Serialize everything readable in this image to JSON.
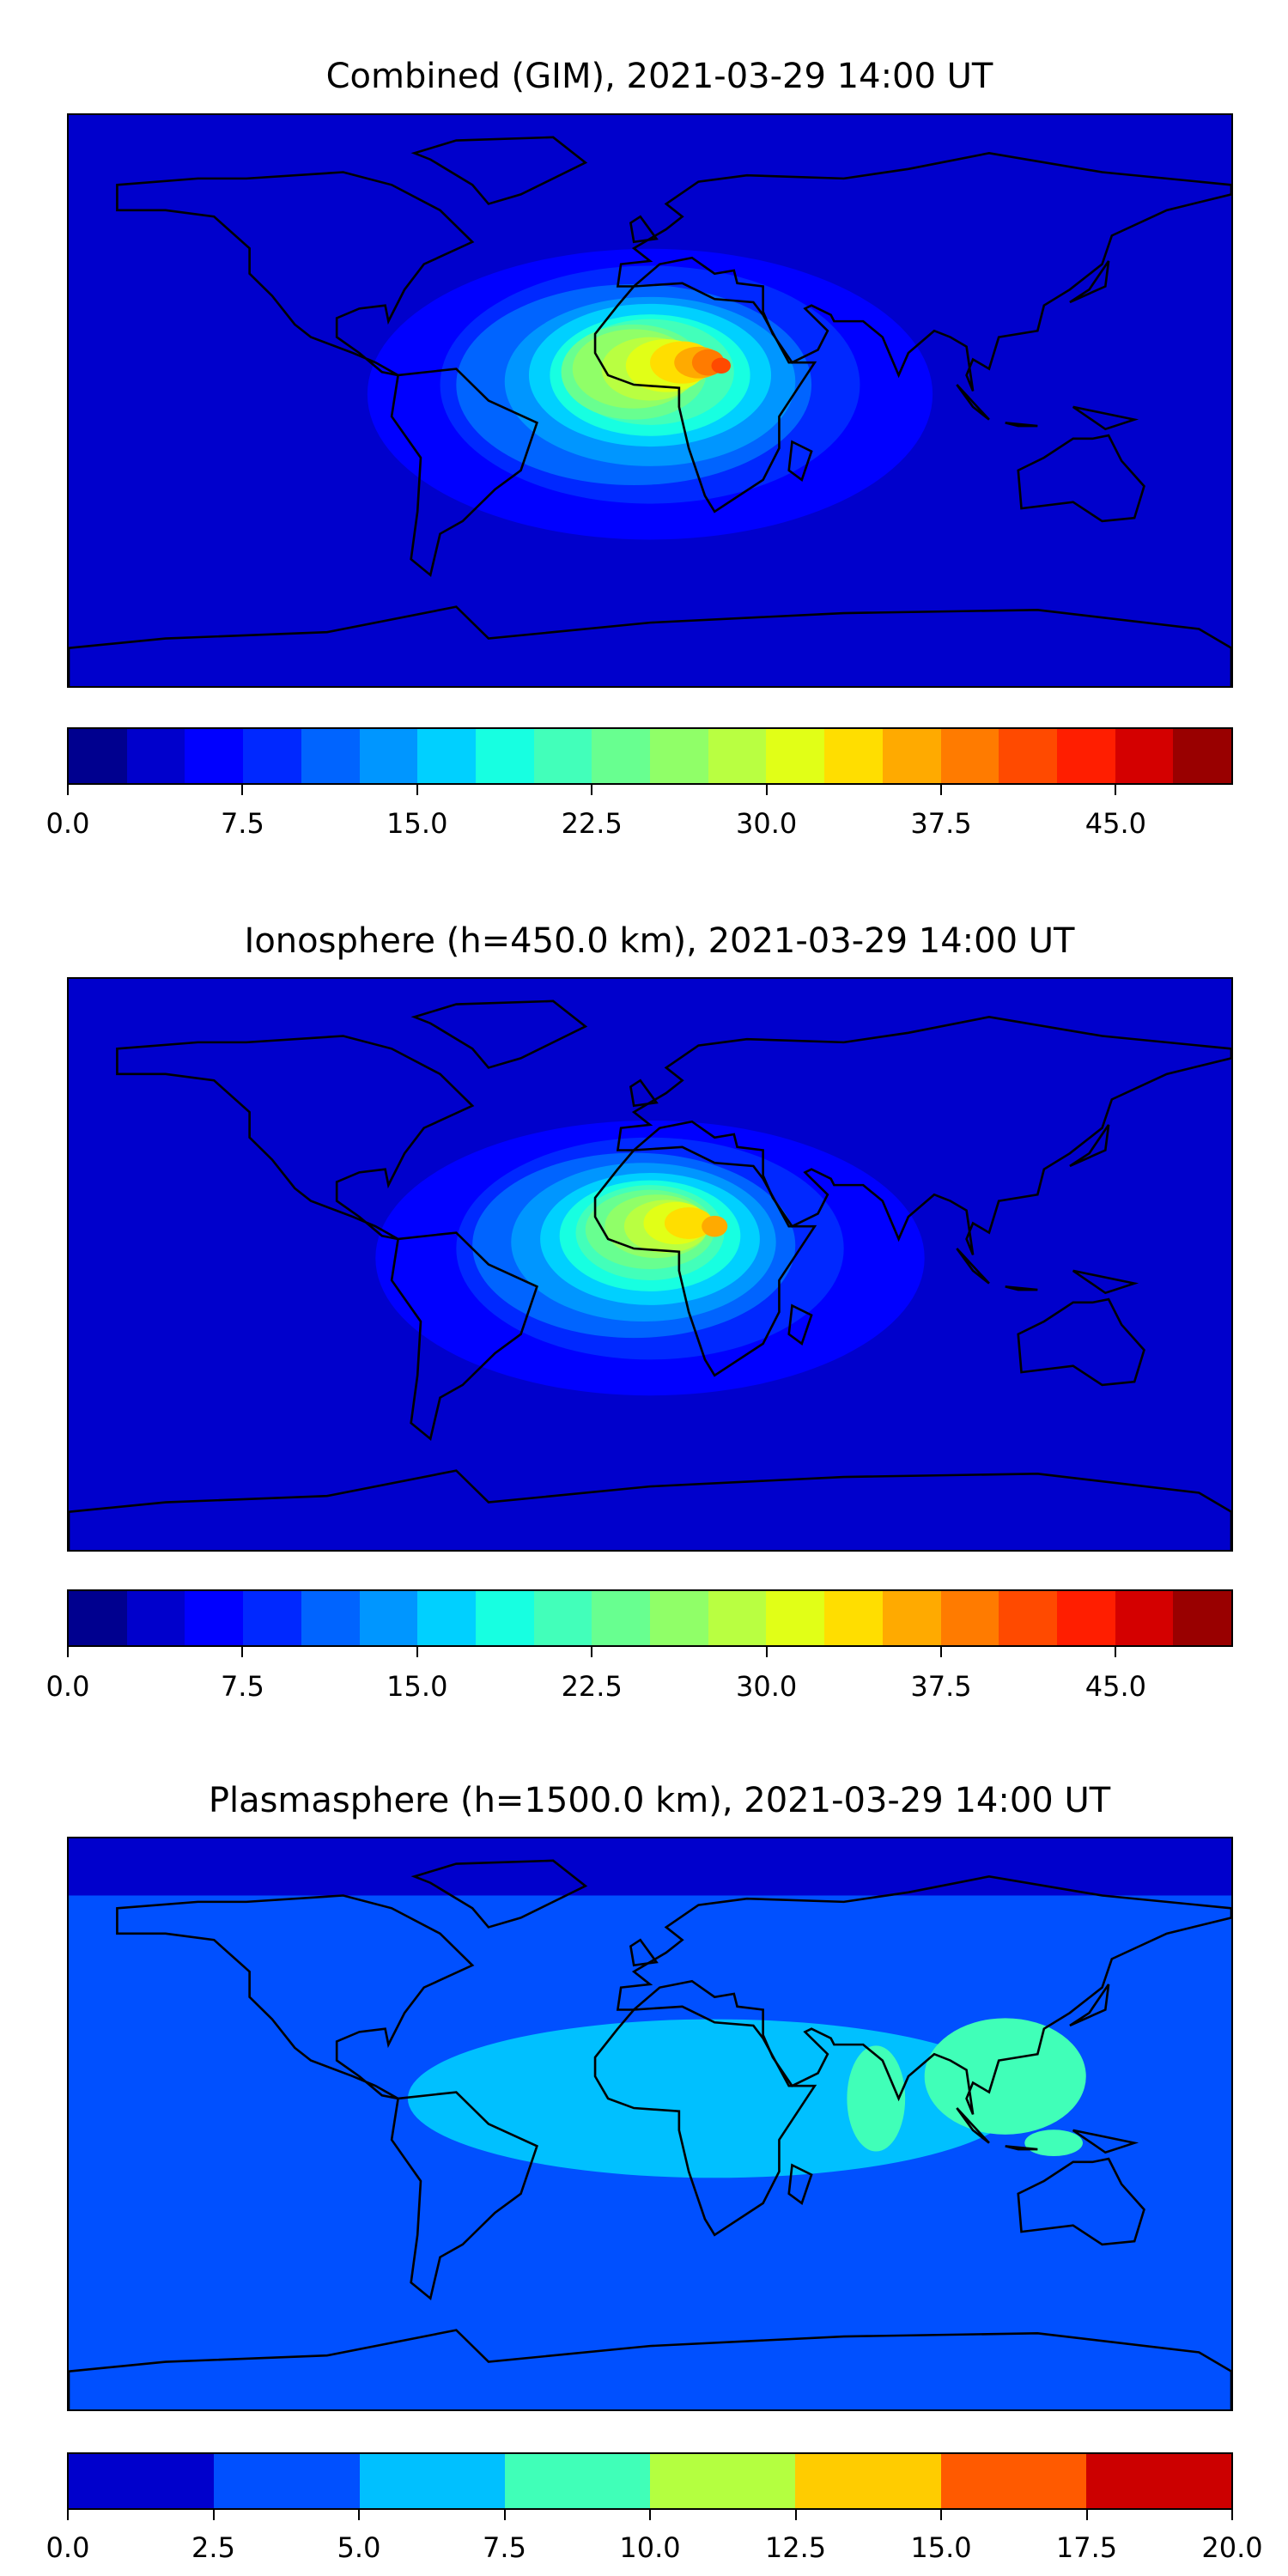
{
  "panels": [
    {
      "title": "Combined (GIM), 2021-03-29 14:00 UT",
      "ticks": [
        "0.0",
        "7.5",
        "15.0",
        "22.5",
        "30.0",
        "37.5",
        "45.0"
      ],
      "tick_values": [
        0,
        7.5,
        15,
        22.5,
        30,
        37.5,
        45
      ],
      "range": [
        0,
        50
      ],
      "levels": 20
    },
    {
      "title": "Ionosphere  (h=450.0 km), 2021-03-29 14:00 UT",
      "ticks": [
        "0.0",
        "7.5",
        "15.0",
        "22.5",
        "30.0",
        "37.5",
        "45.0"
      ],
      "tick_values": [
        0,
        7.5,
        15,
        22.5,
        30,
        37.5,
        45
      ],
      "range": [
        0,
        50
      ],
      "levels": 20
    },
    {
      "title": "Plasmasphere (h=1500.0 km), 2021-03-29 14:00 UT",
      "ticks": [
        "0.0",
        "2.5",
        "5.0",
        "7.5",
        "10.0",
        "12.5",
        "15.0",
        "17.5",
        "20.0"
      ],
      "tick_values": [
        0,
        2.5,
        5,
        7.5,
        10,
        12.5,
        15,
        17.5,
        20
      ],
      "range": [
        0,
        20
      ],
      "levels": 8
    }
  ],
  "colors20": [
    "#00008f",
    "#0000cc",
    "#0000ff",
    "#0028ff",
    "#0064ff",
    "#0096ff",
    "#00d0ff",
    "#17ffe1",
    "#42ffba",
    "#68ff90",
    "#90ff68",
    "#b9ff41",
    "#e1ff17",
    "#ffde00",
    "#ffaa00",
    "#ff7b00",
    "#ff4a00",
    "#ff1e00",
    "#d40000",
    "#990000"
  ],
  "colors8": [
    "#0000cc",
    "#0050ff",
    "#00c0ff",
    "#40ffb8",
    "#b4ff40",
    "#ffcc00",
    "#ff5a00",
    "#cc0000"
  ],
  "chart_data": [
    {
      "type": "heatmap",
      "title": "Combined (GIM), 2021-03-29 14:00 UT",
      "colorbar_range": [
        0,
        50
      ],
      "colorbar_step": 2.5,
      "max_approx": 42.5,
      "max_location": "central Africa"
    },
    {
      "type": "heatmap",
      "title": "Ionosphere  (h=450.0 km), 2021-03-29 14:00 UT",
      "colorbar_range": [
        0,
        50
      ],
      "colorbar_step": 2.5,
      "max_approx": 35,
      "max_location": "central Africa"
    },
    {
      "type": "heatmap",
      "title": "Plasmasphere (h=1500.0 km), 2021-03-29 14:00 UT",
      "colorbar_range": [
        0,
        20
      ],
      "colorbar_step": 2.5,
      "max_approx": 10,
      "max_location": "Indian Ocean / East Asia"
    }
  ]
}
